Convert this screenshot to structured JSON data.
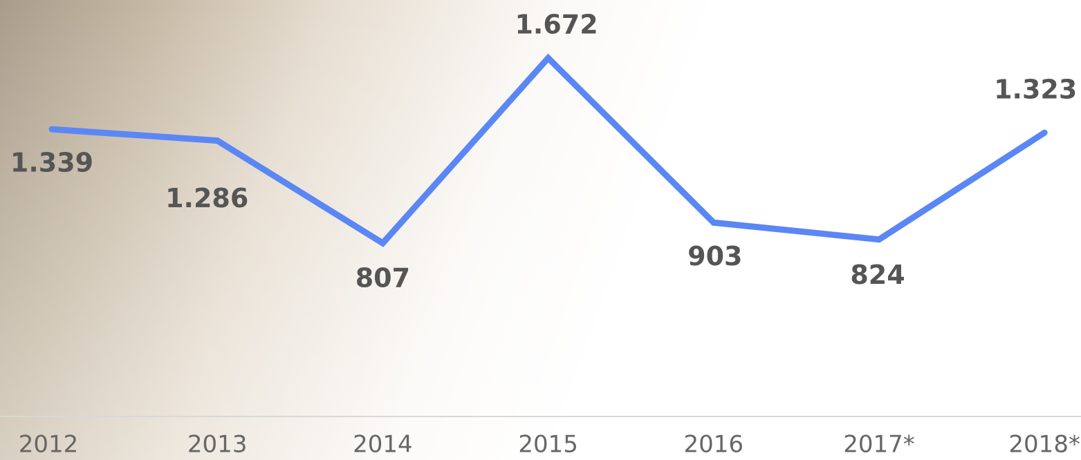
{
  "chart_data": {
    "type": "line",
    "categories": [
      "2012",
      "2013",
      "2014",
      "2015",
      "2016",
      "2017*",
      "2018*"
    ],
    "values": [
      1339,
      1286,
      807,
      1672,
      903,
      824,
      1323
    ],
    "value_labels": [
      "1.339",
      "1.286",
      "807",
      "1.672",
      "903",
      "824",
      "1.323"
    ],
    "color": "#5b87f5"
  }
}
